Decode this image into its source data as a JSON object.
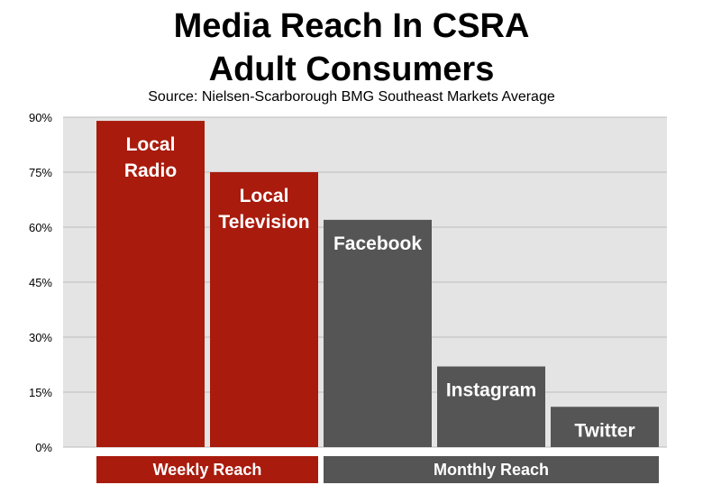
{
  "chart_data": {
    "type": "bar",
    "title_lines": [
      "Media Reach In CSRA",
      "Adult Consumers"
    ],
    "subtitle": "Source: Nielsen-Scarborough BMG Southeast Markets Average",
    "y_ticks": [
      "0%",
      "15%",
      "30%",
      "45%",
      "60%",
      "75%",
      "90%"
    ],
    "ylim": [
      0,
      90
    ],
    "grid": true,
    "categories": [
      {
        "label_lines": [
          "Local",
          "Radio"
        ],
        "value": 89,
        "group": 0
      },
      {
        "label_lines": [
          "Local",
          "Television"
        ],
        "value": 75,
        "group": 0
      },
      {
        "label_lines": [
          "Facebook"
        ],
        "value": 62,
        "group": 1
      },
      {
        "label_lines": [
          "Instagram"
        ],
        "value": 22,
        "group": 1
      },
      {
        "label_lines": [
          "Twitter"
        ],
        "value": 11,
        "group": 1
      }
    ],
    "groups": [
      {
        "label": "Weekly Reach",
        "color": "#a91b0d"
      },
      {
        "label": "Monthly Reach",
        "color": "#555555"
      }
    ],
    "plot_background": "#e4e4e4",
    "gridline_color": "#bdbdbd"
  }
}
